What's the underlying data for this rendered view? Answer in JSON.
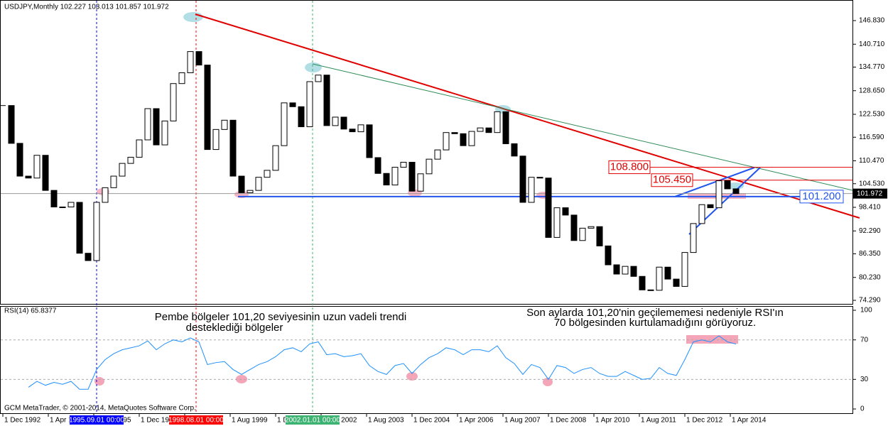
{
  "chart_data": {
    "type": "candlestick",
    "title": "USDJPY,Monthly  102.227 103.013 101.857 101.972",
    "x": [
      "1992-12-01",
      "1993-03-01",
      "1993-06-01",
      "1993-09-01",
      "1993-12-01",
      "1994-03-01",
      "1994-06-01",
      "1994-09-01",
      "1994-12-01",
      "1995-03-01",
      "1995-06-01",
      "1995-09-01",
      "1995-12-01",
      "1996-03-01",
      "1996-06-01",
      "1996-09-01",
      "1996-12-01",
      "1997-03-01",
      "1997-06-01",
      "1997-09-01",
      "1997-12-01",
      "1998-03-01",
      "1998-06-01",
      "1998-09-01",
      "1998-12-01",
      "1999-03-01",
      "1999-06-01",
      "1999-09-01",
      "1999-12-01",
      "2000-03-01",
      "2000-06-01",
      "2000-09-01",
      "2000-12-01",
      "2001-03-01",
      "2001-06-01",
      "2001-09-01",
      "2001-12-01",
      "2002-03-01",
      "2002-06-01",
      "2002-09-01",
      "2002-12-01",
      "2003-03-01",
      "2003-06-01",
      "2003-09-01",
      "2003-12-01",
      "2004-03-01",
      "2004-06-01",
      "2004-09-01",
      "2004-12-01",
      "2005-03-01",
      "2005-06-01",
      "2005-09-01",
      "2005-12-01",
      "2006-03-01",
      "2006-06-01",
      "2006-09-01",
      "2006-12-01",
      "2007-03-01",
      "2007-06-01",
      "2007-09-01",
      "2007-12-01",
      "2008-03-01",
      "2008-06-01",
      "2008-09-01",
      "2008-12-01",
      "2009-03-01",
      "2009-06-01",
      "2009-09-01",
      "2009-12-01",
      "2010-03-01",
      "2010-06-01",
      "2010-09-01",
      "2010-12-01",
      "2011-03-01",
      "2011-06-01",
      "2011-09-01",
      "2011-12-01",
      "2012-03-01",
      "2012-06-01",
      "2012-09-01",
      "2012-12-01",
      "2013-03-01",
      "2013-06-01",
      "2013-09-01",
      "2013-12-01",
      "2014-03-01",
      "2014-06-01"
    ],
    "values": [
      124.8,
      115,
      106.5,
      106,
      111.9,
      102.8,
      98.5,
      98.5,
      99.7,
      86.5,
      84.6,
      99.7,
      103.5,
      106.5,
      109.8,
      111.4,
      115.9,
      124,
      114.6,
      120.8,
      130.5,
      133.3,
      138.8,
      135.3,
      113.4,
      118.6,
      121,
      106.5,
      102.2,
      102.8,
      106.2,
      108,
      114.4,
      125.5,
      124.5,
      119.3,
      131,
      132.7,
      119.6,
      121.8,
      118.7,
      118,
      119.8,
      111.3,
      107.2,
      104.2,
      108.8,
      110.1,
      102.6,
      107.1,
      110.9,
      113.3,
      117.8,
      117.5,
      114.4,
      118.1,
      119,
      117.8,
      123.2,
      114.9,
      111.7,
      99.7,
      106.2,
      106,
      90.6,
      98.3,
      96.4,
      89.8,
      93,
      93.4,
      88.4,
      83.5,
      81.1,
      83.1,
      80.5,
      77,
      76.9,
      82.9,
      79.8,
      77.9,
      86.7,
      94.2,
      99.1,
      98.3,
      105.3,
      103.2,
      101.972
    ],
    "xlim": [
      "1992-11-01",
      "2017-11-01"
    ],
    "xticks": [
      {
        "value": "1992-12-01",
        "label": "1 Dec 1992"
      },
      {
        "value": "1994-04-01",
        "label": "1 Apr 1994"
      },
      {
        "value": "1995-08-01",
        "label": "1 Aug 1995"
      },
      {
        "value": "1996-12-01",
        "label": "1 Dec 1996"
      },
      {
        "value": "1998-04-01",
        "label": "1 Apr 1998"
      },
      {
        "value": "1999-08-01",
        "label": "1 Aug 1999"
      },
      {
        "value": "2000-12-01",
        "label": "1 Dec 2000"
      },
      {
        "value": "2002-04-01",
        "label": "1 Apr 2002"
      },
      {
        "value": "2003-08-01",
        "label": "1 Aug 2003"
      },
      {
        "value": "2004-12-01",
        "label": "1 Dec 2004"
      },
      {
        "value": "2006-04-01",
        "label": "1 Apr 2006"
      },
      {
        "value": "2007-08-01",
        "label": "1 Aug 2007"
      },
      {
        "value": "2008-12-01",
        "label": "1 Dec 2008"
      },
      {
        "value": "2010-04-01",
        "label": "1 Apr 2010"
      },
      {
        "value": "2011-08-01",
        "label": "1 Aug 2011"
      },
      {
        "value": "2012-12-01",
        "label": "1 Dec 2012"
      },
      {
        "value": "2014-04-01",
        "label": "1 Apr 2014"
      }
    ],
    "markers": [
      {
        "value": "1995-09-01",
        "label": "1995.09.01 00:00",
        "color": "#0000ff"
      },
      {
        "value": "1998-08-01",
        "label": "1998.08.01 00:00",
        "color": "#ff0000"
      },
      {
        "value": "2002-01-01",
        "label": "2002.01.01 00:00",
        "color": "#3cb371"
      }
    ],
    "ylim": [
      73.37,
      151.25
    ],
    "yticks": [
      {
        "value": 146.83,
        "label": "146.830"
      },
      {
        "value": 140.71,
        "label": "140.710"
      },
      {
        "value": 134.77,
        "label": "134.770"
      },
      {
        "value": 128.65,
        "label": "128.650"
      },
      {
        "value": 122.53,
        "label": "122.530"
      },
      {
        "value": 116.59,
        "label": "116.590"
      },
      {
        "value": 110.47,
        "label": "110.470"
      },
      {
        "value": 104.53,
        "label": "104.530"
      },
      {
        "value": 98.41,
        "label": "98.410"
      },
      {
        "value": 92.29,
        "label": "92.290"
      },
      {
        "value": 86.35,
        "label": "86.350"
      },
      {
        "value": 80.23,
        "label": "80.230"
      },
      {
        "value": 74.29,
        "label": "74.290"
      }
    ],
    "levels": [
      {
        "value": 108.8,
        "label": "108.800",
        "color": "#e00000"
      },
      {
        "value": 105.45,
        "label": "105.450",
        "color": "#e00000"
      },
      {
        "value": 101.2,
        "label": "101.200",
        "color": "#2255ee"
      }
    ],
    "current_price": {
      "value": 101.972,
      "label": "101.972"
    },
    "color": "#000000",
    "rsi": {
      "title": "RSI(14) 65.8377",
      "color": "#1e90ff",
      "values": [
        null,
        null,
        null,
        22,
        28,
        24,
        27,
        25,
        28,
        20,
        20,
        40,
        50,
        56,
        60,
        62,
        64,
        69,
        60,
        66,
        70,
        68,
        72,
        68,
        45,
        47,
        48,
        40,
        35,
        40,
        45,
        48,
        53,
        60,
        62,
        58,
        66,
        68,
        55,
        56,
        53,
        54,
        56,
        44,
        38,
        35,
        44,
        46,
        36,
        45,
        52,
        56,
        62,
        60,
        55,
        60,
        60,
        58,
        64,
        52,
        46,
        35,
        45,
        42,
        30,
        44,
        42,
        36,
        40,
        42,
        36,
        33,
        33,
        38,
        34,
        30,
        31,
        42,
        36,
        34,
        50,
        68,
        70,
        68,
        74,
        68,
        65.8377
      ],
      "ylim": [
        -4.3,
        103.6
      ],
      "yticks": [
        100,
        70,
        30,
        0
      ],
      "levels": [
        70,
        30
      ],
      "annotations": [
        "Pembe bölgeler 101,20 seviyesinin uzun vadeli trendi",
        "desteklediği bölgeler",
        "Son aylarda 101,20'nin geçilememesi nedeniyle RSI'ın",
        "70 bölgesinden kurtulamadığını görüyoruz."
      ]
    },
    "footer": "GCM MetaTrader, © 2001-2014, MetaQuotes Software Corp."
  }
}
